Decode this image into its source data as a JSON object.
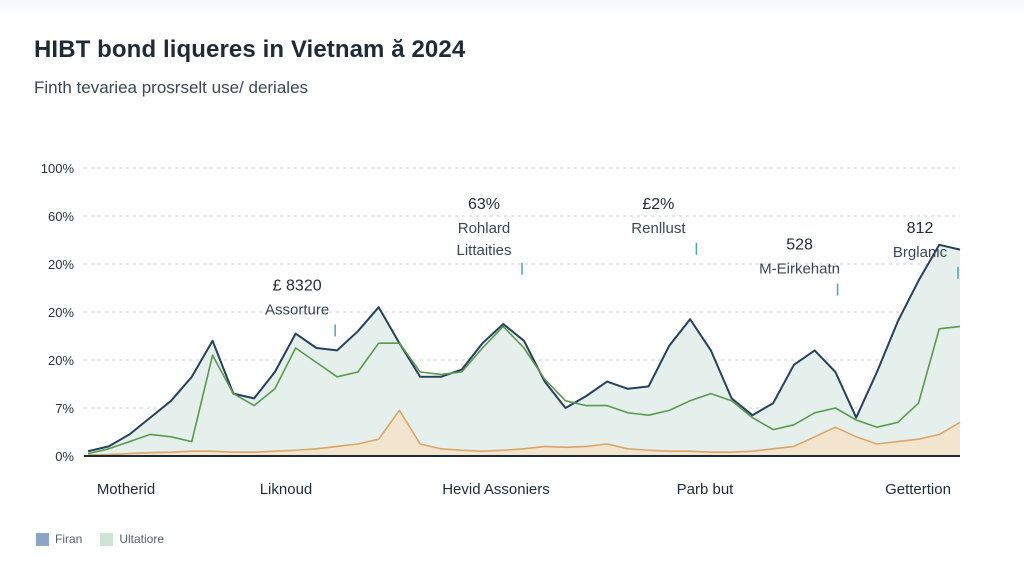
{
  "header": {
    "title": "HIBT bond liqueres in Vietnam ă 2024",
    "subtitle": "Finth tevariea prosrselt use/ deriales"
  },
  "legend": [
    {
      "label": "Firan",
      "color": "#8ba6c4"
    },
    {
      "label": "Ultatiore",
      "color": "#cfe3d6"
    }
  ],
  "chart_data": {
    "type": "area",
    "title": "HIBT bond liqueres in Vietnam ă 2024",
    "subtitle": "Finth tevariea prosrselt use/ deriales",
    "y_tick_labels": [
      "0%",
      "7%",
      "20%",
      "20%",
      "20%",
      "60%",
      "100%"
    ],
    "x_tick_labels": [
      "Motherid",
      "Liknoud",
      "Hevid Assoniers",
      "Parb but",
      "Gettertion"
    ],
    "grid": true,
    "legend_position": "bottom-left",
    "x": [
      0.0,
      0.5,
      1.0,
      1.5,
      2.0,
      2.5,
      3.0,
      3.5,
      4.0,
      4.5,
      5.0,
      5.5,
      6.0,
      6.5,
      7.0,
      7.5,
      8.0,
      8.5,
      9.0,
      9.5,
      10.0,
      10.5,
      11.0,
      11.5,
      12.0,
      12.5,
      13.0,
      13.5,
      14.0,
      14.5,
      15.0,
      15.5,
      16.0,
      16.5,
      17.0,
      17.5,
      18.0,
      18.5,
      19.0,
      19.5,
      20.0,
      20.5,
      21.0
    ],
    "ylim": [
      0,
      6
    ],
    "series": [
      {
        "name": "",
        "role": "upper-line",
        "color": "#27405e",
        "values": [
          0.1,
          0.2,
          0.45,
          0.8,
          1.15,
          1.65,
          2.4,
          1.3,
          1.2,
          1.75,
          2.55,
          2.25,
          2.2,
          2.6,
          3.1,
          2.35,
          1.65,
          1.65,
          1.8,
          2.35,
          2.75,
          2.4,
          1.55,
          1.0,
          1.25,
          1.55,
          1.4,
          1.45,
          2.3,
          2.85,
          2.2,
          1.2,
          0.85,
          1.1,
          1.9,
          2.2,
          1.75,
          0.8,
          1.75,
          2.8,
          3.65,
          4.4,
          4.3
        ]
      },
      {
        "name": "",
        "role": "middle-line",
        "color": "#5a9a4e",
        "values": [
          0.05,
          0.15,
          0.3,
          0.45,
          0.4,
          0.3,
          2.1,
          1.3,
          1.05,
          1.4,
          2.25,
          1.95,
          1.65,
          1.75,
          2.35,
          2.35,
          1.75,
          1.7,
          1.75,
          2.25,
          2.7,
          2.25,
          1.6,
          1.15,
          1.05,
          1.05,
          0.9,
          0.85,
          0.95,
          1.15,
          1.3,
          1.15,
          0.8,
          0.55,
          0.65,
          0.9,
          1.0,
          0.75,
          0.6,
          0.7,
          1.1,
          2.65,
          2.7
        ]
      },
      {
        "name": "",
        "role": "lower-line",
        "color": "#d9a66a",
        "values": [
          0.02,
          0.03,
          0.05,
          0.07,
          0.08,
          0.1,
          0.1,
          0.08,
          0.08,
          0.1,
          0.12,
          0.15,
          0.2,
          0.25,
          0.35,
          0.95,
          0.25,
          0.15,
          0.12,
          0.1,
          0.12,
          0.15,
          0.2,
          0.18,
          0.2,
          0.25,
          0.15,
          0.12,
          0.1,
          0.1,
          0.08,
          0.08,
          0.1,
          0.15,
          0.2,
          0.4,
          0.6,
          0.4,
          0.25,
          0.3,
          0.35,
          0.45,
          0.7
        ]
      }
    ],
    "annotations": [
      {
        "value": "£ 8320",
        "label": "Assorture",
        "x": 6.0,
        "y": 2.95
      },
      {
        "value": "63%",
        "label": "Rohlard Littaities",
        "x": 10.5,
        "y": 4.65
      },
      {
        "value": "£2%",
        "label": "Renllust",
        "x": 14.7,
        "y": 4.65
      },
      {
        "value": "528",
        "label": "M-Eirkehatn",
        "x": 18.1,
        "y": 3.8
      },
      {
        "value": "812",
        "label": "Brglanic",
        "x": 21.0,
        "y": 4.15
      }
    ]
  }
}
